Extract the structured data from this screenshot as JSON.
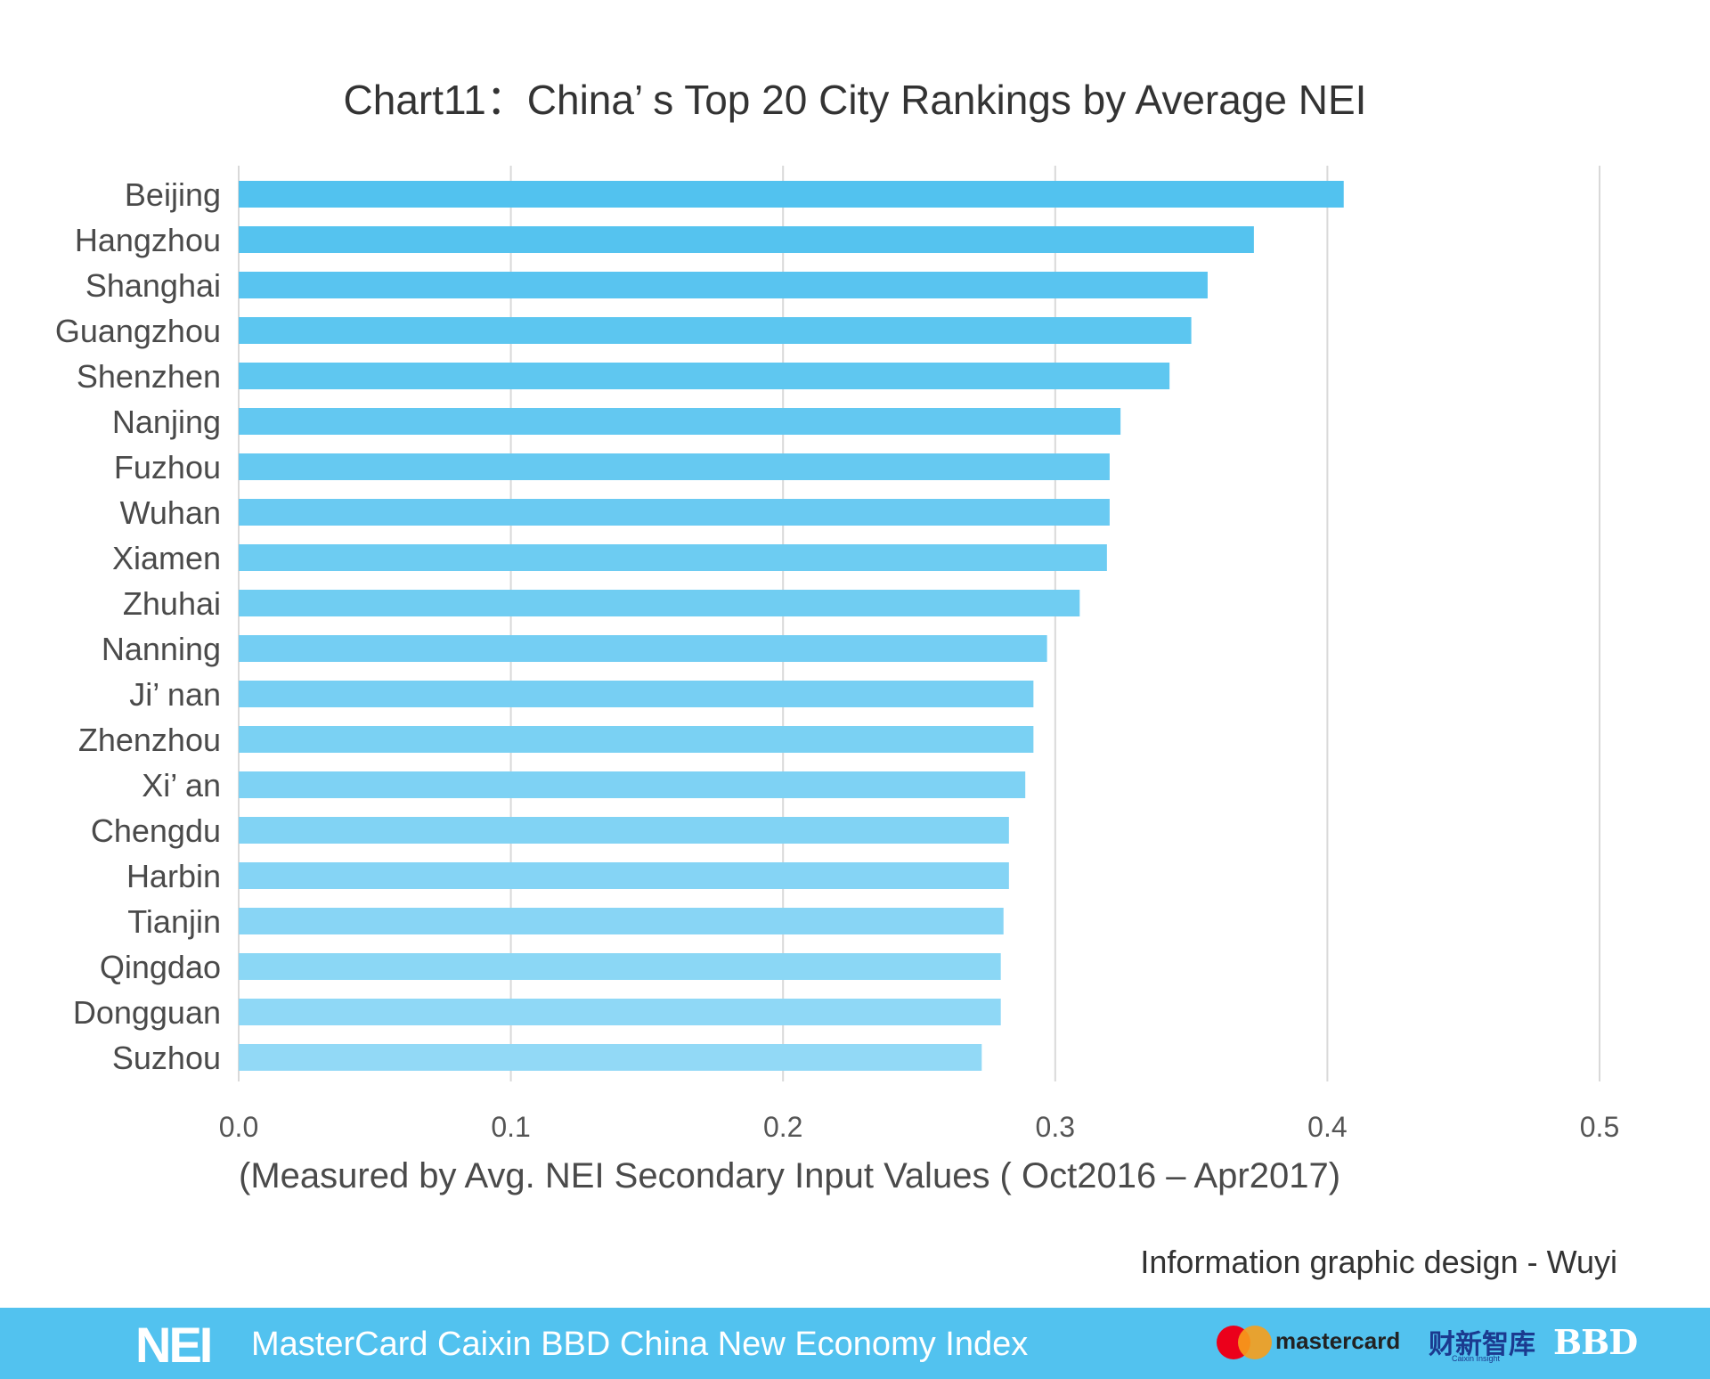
{
  "chart_data": {
    "type": "bar",
    "orientation": "horizontal",
    "title": "Chart11：China’ s Top 20 City Rankings by Average NEI",
    "xlabel": "(Measured by Avg. NEI Secondary Input Values ( Oct2016 – Apr2017)",
    "ylabel": "",
    "categories": [
      "Beijing",
      "Hangzhou",
      "Shanghai",
      "Guangzhou",
      "Shenzhen",
      "Nanjing",
      "Fuzhou",
      "Wuhan",
      "Xiamen",
      "Zhuhai",
      "Nanning",
      "Ji’ nan",
      "Zhenzhou",
      "Xi’ an",
      "Chengdu",
      "Harbin",
      "Tianjin",
      "Qingdao",
      "Dongguan",
      "Suzhou"
    ],
    "values": [
      0.406,
      0.373,
      0.356,
      0.35,
      0.342,
      0.324,
      0.32,
      0.32,
      0.319,
      0.309,
      0.297,
      0.292,
      0.292,
      0.289,
      0.283,
      0.283,
      0.281,
      0.28,
      0.28,
      0.273
    ],
    "xlim": [
      0,
      0.5
    ],
    "xticks": [
      "0.0",
      "0.1",
      "0.2",
      "0.3",
      "0.4",
      "0.5"
    ],
    "grid": true,
    "bar_color_top": "#52c2ef",
    "bar_color_bottom": "#92d9f6"
  },
  "credit": "Information graphic design - Wuyi",
  "footer": {
    "logo_text": "NEI",
    "title": "MasterCard Caixin BBD China New Economy Index",
    "mastercard_text": "mastercard",
    "caixin_text": "财新智库",
    "caixin_sub": "Caixin Insight",
    "bbd_text": "BBD"
  },
  "colors": {
    "footer_bg": "#52c2ef",
    "grid": "#d9d9d9"
  }
}
